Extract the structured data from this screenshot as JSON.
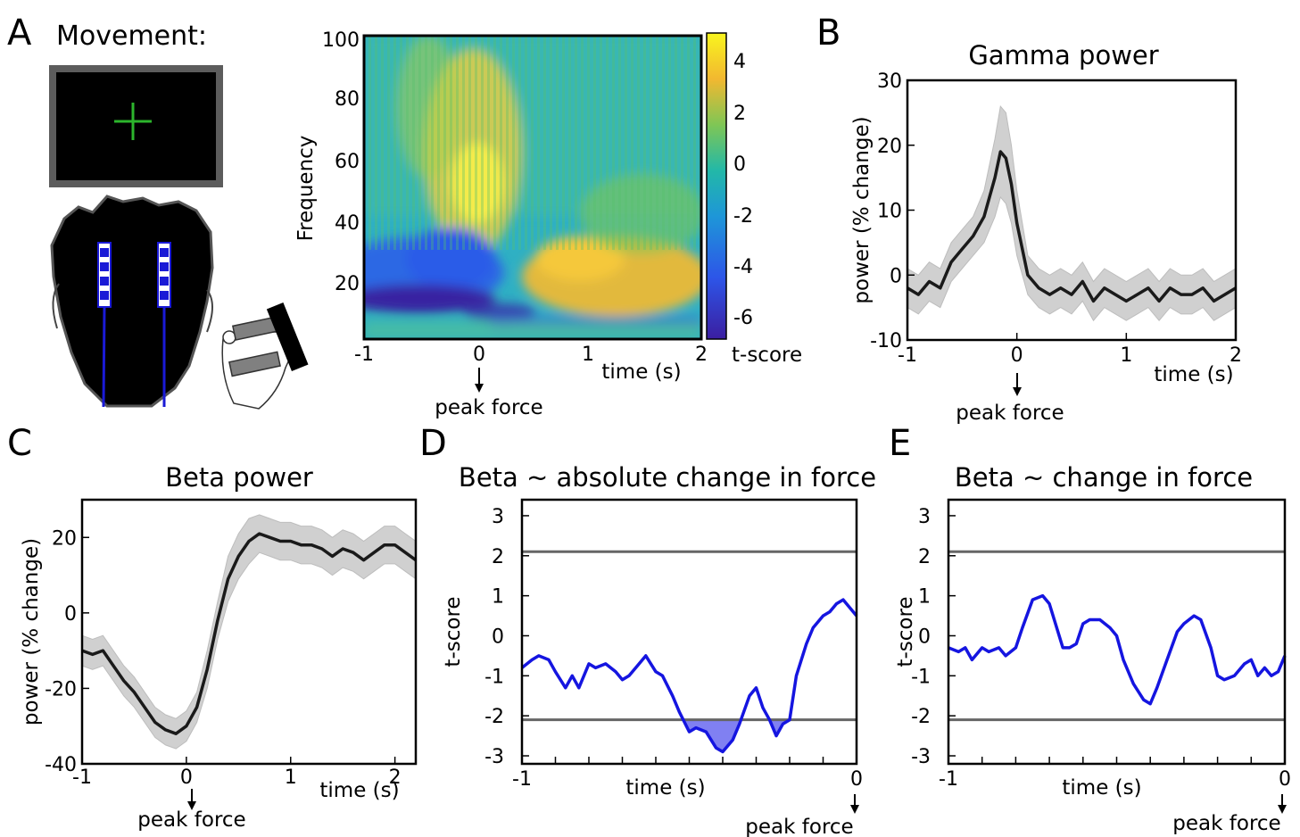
{
  "colors": {
    "blue": "#1515e0",
    "shade": "#d0d0d0",
    "line": "#1a1a1a",
    "thresh": "#666666",
    "sigfill": "#6a6af0"
  },
  "panelA": {
    "letter": "A",
    "title": "Movement:",
    "xlabel": "time (s)",
    "ylabel": "Frequency",
    "cbar_label": "t-score",
    "annotation": "peak force",
    "xticks": [
      "-1",
      "0",
      "1",
      "2"
    ],
    "yticks": [
      "100",
      "80",
      "60",
      "40",
      "20"
    ],
    "cbar_ticks": [
      "4",
      "2",
      "0",
      "-2",
      "-4",
      "-6"
    ]
  },
  "panelB": {
    "letter": "B",
    "annotation": "peak force"
  },
  "panelC": {
    "letter": "C",
    "annotation": "peak force"
  },
  "panelD": {
    "letter": "D",
    "annotation": "peak force"
  },
  "panelE": {
    "letter": "E",
    "annotation": "peak force"
  },
  "chart_data": [
    {
      "type": "heatmap",
      "panel": "A",
      "xlabel": "time (s)",
      "ylabel": "Frequency",
      "colorbar_label": "t-score",
      "xlim": [
        -1,
        2
      ],
      "ylim": [
        2,
        100
      ],
      "clim": [
        -7,
        5
      ],
      "regions": [
        {
          "desc": "gamma increase",
          "t": [
            -0.3,
            0.1
          ],
          "f": [
            45,
            75
          ],
          "value": 3.5
        },
        {
          "desc": "beta decrease",
          "t": [
            -1,
            0.4
          ],
          "f": [
            10,
            20
          ],
          "value": -6.5
        },
        {
          "desc": "beta rebound",
          "t": [
            0.5,
            2
          ],
          "f": [
            10,
            30
          ],
          "value": 3
        }
      ]
    },
    {
      "type": "line",
      "panel": "B",
      "title": "Gamma power",
      "xlabel": "time (s)",
      "ylabel": "power (% change)",
      "xlim": [
        -1,
        2
      ],
      "ylim": [
        -10,
        30
      ],
      "xticks": [
        -1,
        0,
        1,
        2
      ],
      "yticks": [
        -10,
        0,
        10,
        20,
        30
      ],
      "x": [
        -1,
        -0.9,
        -0.8,
        -0.7,
        -0.6,
        -0.5,
        -0.4,
        -0.3,
        -0.25,
        -0.2,
        -0.15,
        -0.1,
        -0.05,
        0,
        0.05,
        0.1,
        0.2,
        0.3,
        0.4,
        0.5,
        0.6,
        0.7,
        0.8,
        0.9,
        1,
        1.1,
        1.2,
        1.3,
        1.4,
        1.5,
        1.6,
        1.7,
        1.8,
        1.9,
        2
      ],
      "y": [
        -2,
        -3,
        -1,
        -2,
        2,
        4,
        6,
        9,
        12,
        15,
        19,
        18,
        14,
        8,
        4,
        0,
        -2,
        -3,
        -2,
        -3,
        -1,
        -4,
        -2,
        -3,
        -4,
        -3,
        -2,
        -4,
        -2,
        -3,
        -3,
        -2,
        -4,
        -3,
        -2
      ],
      "ci": [
        3,
        3,
        3,
        3,
        3,
        3,
        3,
        4,
        5,
        6,
        7,
        7,
        6,
        5,
        4,
        3,
        3,
        3,
        3,
        3,
        3,
        3,
        3,
        3,
        3,
        3,
        3,
        3,
        3,
        3,
        3,
        3,
        3,
        3,
        3
      ],
      "annotation": "peak force"
    },
    {
      "type": "line",
      "panel": "C",
      "title": "Beta power",
      "xlabel": "time (s)",
      "ylabel": "power (% change)",
      "xlim": [
        -1,
        2.2
      ],
      "ylim": [
        -40,
        30
      ],
      "xticks": [
        -1,
        0,
        1,
        2
      ],
      "yticks": [
        -40,
        -20,
        0,
        20
      ],
      "x": [
        -1,
        -0.9,
        -0.8,
        -0.7,
        -0.6,
        -0.5,
        -0.4,
        -0.3,
        -0.2,
        -0.1,
        0,
        0.1,
        0.2,
        0.3,
        0.4,
        0.5,
        0.6,
        0.7,
        0.8,
        0.9,
        1,
        1.1,
        1.2,
        1.3,
        1.4,
        1.5,
        1.6,
        1.7,
        1.8,
        1.9,
        2,
        2.1,
        2.2
      ],
      "y": [
        -10,
        -11,
        -10,
        -14,
        -18,
        -21,
        -25,
        -29,
        -31,
        -32,
        -30,
        -25,
        -15,
        -2,
        9,
        15,
        19,
        21,
        20,
        19,
        19,
        18,
        18,
        17,
        15,
        17,
        16,
        14,
        16,
        18,
        18,
        16,
        14
      ],
      "ci": [
        4,
        4,
        4,
        4,
        4,
        4,
        4,
        4,
        4,
        4,
        4,
        4,
        5,
        5,
        6,
        6,
        6,
        5,
        5,
        5,
        5,
        5,
        5,
        5,
        5,
        5,
        5,
        5,
        5,
        5,
        5,
        5,
        5
      ],
      "annotation": "peak force"
    },
    {
      "type": "line",
      "panel": "D",
      "title": "Beta ~ absolute change in force",
      "xlabel": "time (s)",
      "ylabel": "t-score",
      "xlim": [
        -1,
        0
      ],
      "ylim": [
        -3.2,
        3.4
      ],
      "xticks": [
        -1,
        0
      ],
      "yticks": [
        3,
        2,
        1,
        0,
        -1,
        -2,
        -3
      ],
      "thresholds": [
        2.1,
        -2.1
      ],
      "x": [
        -1,
        -0.97,
        -0.95,
        -0.92,
        -0.9,
        -0.87,
        -0.85,
        -0.83,
        -0.8,
        -0.78,
        -0.75,
        -0.72,
        -0.7,
        -0.68,
        -0.66,
        -0.63,
        -0.6,
        -0.58,
        -0.55,
        -0.53,
        -0.5,
        -0.48,
        -0.45,
        -0.42,
        -0.4,
        -0.37,
        -0.35,
        -0.32,
        -0.3,
        -0.28,
        -0.26,
        -0.24,
        -0.22,
        -0.2,
        -0.18,
        -0.15,
        -0.13,
        -0.1,
        -0.08,
        -0.06,
        -0.04,
        -0.02,
        0
      ],
      "y": [
        -0.8,
        -0.6,
        -0.5,
        -0.6,
        -0.9,
        -1.3,
        -1.0,
        -1.3,
        -0.7,
        -0.8,
        -0.7,
        -0.9,
        -1.1,
        -1.0,
        -0.8,
        -0.5,
        -0.9,
        -1.0,
        -1.5,
        -1.9,
        -2.4,
        -2.3,
        -2.4,
        -2.8,
        -2.9,
        -2.6,
        -2.2,
        -1.5,
        -1.3,
        -1.8,
        -2.1,
        -2.5,
        -2.2,
        -2.1,
        -1.0,
        -0.2,
        0.2,
        0.5,
        0.6,
        0.8,
        0.9,
        0.7,
        0.5
      ],
      "annotation": "peak force"
    },
    {
      "type": "line",
      "panel": "E",
      "title": "Beta ~ change in force",
      "xlabel": "time (s)",
      "ylabel": "t-score",
      "xlim": [
        -1,
        0
      ],
      "ylim": [
        -3.2,
        3.4
      ],
      "xticks": [
        -1,
        0
      ],
      "yticks": [
        3,
        2,
        1,
        0,
        -1,
        -2,
        -3
      ],
      "thresholds": [
        2.1,
        -2.1
      ],
      "x": [
        -1,
        -0.97,
        -0.95,
        -0.93,
        -0.9,
        -0.88,
        -0.85,
        -0.83,
        -0.8,
        -0.78,
        -0.75,
        -0.72,
        -0.7,
        -0.66,
        -0.64,
        -0.62,
        -0.6,
        -0.58,
        -0.55,
        -0.52,
        -0.5,
        -0.48,
        -0.45,
        -0.42,
        -0.4,
        -0.38,
        -0.35,
        -0.32,
        -0.3,
        -0.27,
        -0.25,
        -0.22,
        -0.2,
        -0.18,
        -0.15,
        -0.12,
        -0.1,
        -0.08,
        -0.06,
        -0.04,
        -0.02,
        0
      ],
      "y": [
        -0.3,
        -0.4,
        -0.3,
        -0.6,
        -0.3,
        -0.4,
        -0.3,
        -0.5,
        -0.3,
        0.2,
        0.9,
        1.0,
        0.8,
        -0.3,
        -0.3,
        -0.2,
        0.3,
        0.4,
        0.4,
        0.2,
        0.0,
        -0.6,
        -1.2,
        -1.6,
        -1.7,
        -1.3,
        -0.6,
        0.1,
        0.3,
        0.5,
        0.4,
        -0.3,
        -1.0,
        -1.1,
        -1.0,
        -0.7,
        -0.6,
        -1.0,
        -0.8,
        -1.0,
        -0.9,
        -0.5
      ],
      "annotation": "peak force"
    }
  ]
}
